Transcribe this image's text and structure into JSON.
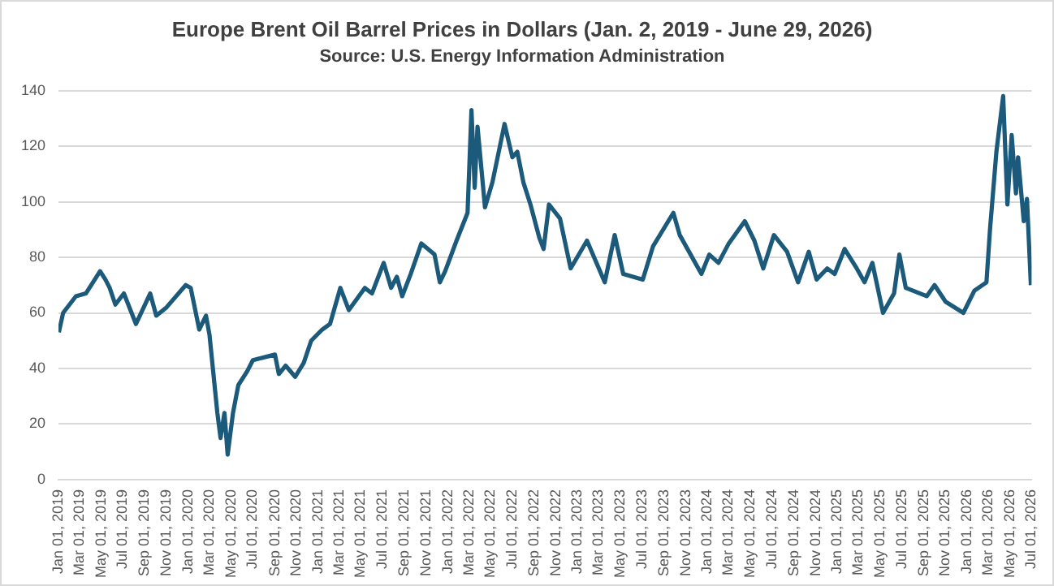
{
  "chart_data": {
    "type": "line",
    "title": "Europe Brent Oil Barrel Prices in Dollars (Jan. 2, 2019 - June 29, 2026)",
    "subtitle": "Source: U.S. Energy Information Administration",
    "x": [
      "2019-01-02",
      "2019-01-14",
      "2019-02-19",
      "2019-03-19",
      "2019-04-28",
      "2019-05-13",
      "2019-05-25",
      "2019-06-10",
      "2019-07-04",
      "2019-08-07",
      "2019-09-16",
      "2019-10-03",
      "2019-11-01",
      "2019-12-25",
      "2020-01-08",
      "2020-02-01",
      "2020-02-20",
      "2020-03-01",
      "2020-03-23",
      "2020-04-01",
      "2020-04-12",
      "2020-04-21",
      "2020-05-06",
      "2020-05-21",
      "2020-06-15",
      "2020-07-01",
      "2020-09-01",
      "2020-09-12",
      "2020-10-01",
      "2020-10-28",
      "2020-11-21",
      "2020-12-12",
      "2021-01-12",
      "2021-02-03",
      "2021-03-04",
      "2021-03-28",
      "2021-05-12",
      "2021-06-01",
      "2021-07-04",
      "2021-07-25",
      "2021-08-10",
      "2021-08-25",
      "2021-09-18",
      "2021-10-18",
      "2021-11-24",
      "2021-12-09",
      "2021-12-24",
      "2022-01-25",
      "2022-02-25",
      "2022-03-08",
      "2022-03-17",
      "2022-03-25",
      "2022-04-15",
      "2022-05-06",
      "2022-06-09",
      "2022-07-01",
      "2022-07-15",
      "2022-08-01",
      "2022-08-21",
      "2022-09-15",
      "2022-09-27",
      "2022-10-12",
      "2022-11-12",
      "2022-12-12",
      "2023-01-27",
      "2023-03-18",
      "2023-04-15",
      "2023-05-09",
      "2023-07-03",
      "2023-08-01",
      "2023-09-27",
      "2023-10-15",
      "2023-12-15",
      "2024-01-06",
      "2024-02-01",
      "2024-03-01",
      "2024-04-15",
      "2024-05-12",
      "2024-06-06",
      "2024-07-06",
      "2024-08-12",
      "2024-09-12",
      "2024-10-12",
      "2024-11-03",
      "2024-12-03",
      "2024-12-24",
      "2025-01-21",
      "2025-02-24",
      "2025-03-18",
      "2025-04-09",
      "2025-05-09",
      "2025-06-09",
      "2025-06-24",
      "2025-07-12",
      "2025-09-09",
      "2025-10-01",
      "2025-11-01",
      "2025-12-21",
      "2026-01-21",
      "2026-02-24",
      "2026-03-06",
      "2026-03-24",
      "2026-04-12",
      "2026-04-24",
      "2026-05-06",
      "2026-05-18",
      "2026-05-24",
      "2026-06-09",
      "2026-06-18",
      "2026-06-29"
    ],
    "series": [
      {
        "color": "#1c5a7c",
        "values": [
          53,
          60,
          66,
          67,
          75,
          72,
          69,
          63,
          67,
          56,
          67,
          59,
          62,
          70,
          69,
          54,
          59,
          52,
          24,
          15,
          24,
          9,
          24,
          34,
          39,
          43,
          45,
          38,
          41,
          37,
          42,
          50,
          54,
          56,
          69,
          61,
          69,
          67,
          78,
          69,
          73,
          66,
          74,
          85,
          81,
          71,
          75,
          86,
          96,
          133,
          105,
          127,
          98,
          107,
          128,
          116,
          118,
          107,
          99,
          87,
          83,
          99,
          94,
          76,
          86,
          71,
          88,
          74,
          72,
          84,
          96,
          88,
          74,
          81,
          78,
          85,
          93,
          86,
          76,
          88,
          82,
          71,
          82,
          72,
          76,
          74,
          83,
          76,
          71,
          78,
          60,
          67,
          81,
          69,
          66,
          70,
          64,
          60,
          68,
          71,
          90,
          118,
          138,
          99,
          124,
          103,
          116,
          93,
          101,
          70
        ]
      }
    ],
    "xlim": [
      "2019-01-01",
      "2026-07-01"
    ],
    "xticks": [
      {
        "value": "2019-01-01",
        "label": "Jan 01, 2019"
      },
      {
        "value": "2019-03-01",
        "label": "Mar 01, 2019"
      },
      {
        "value": "2019-05-01",
        "label": "May 01, 2019"
      },
      {
        "value": "2019-07-01",
        "label": "Jul 01, 2019"
      },
      {
        "value": "2019-09-01",
        "label": "Sep 01, 2019"
      },
      {
        "value": "2019-11-01",
        "label": "Nov 01, 2019"
      },
      {
        "value": "2020-01-01",
        "label": "Jan 01, 2020"
      },
      {
        "value": "2020-03-01",
        "label": "Mar 01, 2020"
      },
      {
        "value": "2020-05-01",
        "label": "May 01, 2020"
      },
      {
        "value": "2020-07-01",
        "label": "Jul 01, 2020"
      },
      {
        "value": "2020-09-01",
        "label": "Sep 01, 2020"
      },
      {
        "value": "2020-11-01",
        "label": "Nov 01, 2020"
      },
      {
        "value": "2021-01-01",
        "label": "Jan 01, 2021"
      },
      {
        "value": "2021-03-01",
        "label": "Mar 01, 2021"
      },
      {
        "value": "2021-05-01",
        "label": "May 01, 2021"
      },
      {
        "value": "2021-07-01",
        "label": "Jul 01, 2021"
      },
      {
        "value": "2021-09-01",
        "label": "Sep 01, 2021"
      },
      {
        "value": "2021-11-01",
        "label": "Nov 01, 2021"
      },
      {
        "value": "2022-01-01",
        "label": "Jan 01, 2022"
      },
      {
        "value": "2022-03-01",
        "label": "Mar 01, 2022"
      },
      {
        "value": "2022-05-01",
        "label": "May 01, 2022"
      },
      {
        "value": "2022-07-01",
        "label": "Jul 01, 2022"
      },
      {
        "value": "2022-09-01",
        "label": "Sep 01, 2022"
      },
      {
        "value": "2022-11-01",
        "label": "Nov 01, 2022"
      },
      {
        "value": "2023-01-01",
        "label": "Jan 01, 2023"
      },
      {
        "value": "2023-03-01",
        "label": "Mar 01, 2023"
      },
      {
        "value": "2023-05-01",
        "label": "May 01, 2023"
      },
      {
        "value": "2023-07-01",
        "label": "Jul 01, 2023"
      },
      {
        "value": "2023-09-01",
        "label": "Sep 01, 2023"
      },
      {
        "value": "2023-11-01",
        "label": "Nov 01, 2023"
      },
      {
        "value": "2024-01-01",
        "label": "Jan 01, 2024"
      },
      {
        "value": "2024-03-01",
        "label": "Mar 01, 2024"
      },
      {
        "value": "2024-05-01",
        "label": "May 01, 2024"
      },
      {
        "value": "2024-07-01",
        "label": "Jul 01, 2024"
      },
      {
        "value": "2024-09-01",
        "label": "Sep 01, 2024"
      },
      {
        "value": "2024-11-01",
        "label": "Nov 01, 2024"
      },
      {
        "value": "2025-01-01",
        "label": "Jan 01, 2025"
      },
      {
        "value": "2025-03-01",
        "label": "Mar 01, 2025"
      },
      {
        "value": "2025-05-01",
        "label": "May 01, 2025"
      },
      {
        "value": "2025-07-01",
        "label": "Jul 01, 2025"
      },
      {
        "value": "2025-09-01",
        "label": "Sep 01, 2025"
      },
      {
        "value": "2025-11-01",
        "label": "Nov 01, 2025"
      },
      {
        "value": "2026-01-01",
        "label": "Jan 01, 2026"
      },
      {
        "value": "2026-03-01",
        "label": "Mar 01, 2026"
      },
      {
        "value": "2026-05-01",
        "label": "May 01, 2026"
      },
      {
        "value": "2026-07-01",
        "label": "Jul 01, 2026"
      }
    ],
    "ylim": [
      0,
      140
    ],
    "yticks": [
      0,
      20,
      40,
      60,
      80,
      100,
      120,
      140
    ],
    "grid": "y",
    "legend": false,
    "marker": "none",
    "line_style": "solid"
  }
}
